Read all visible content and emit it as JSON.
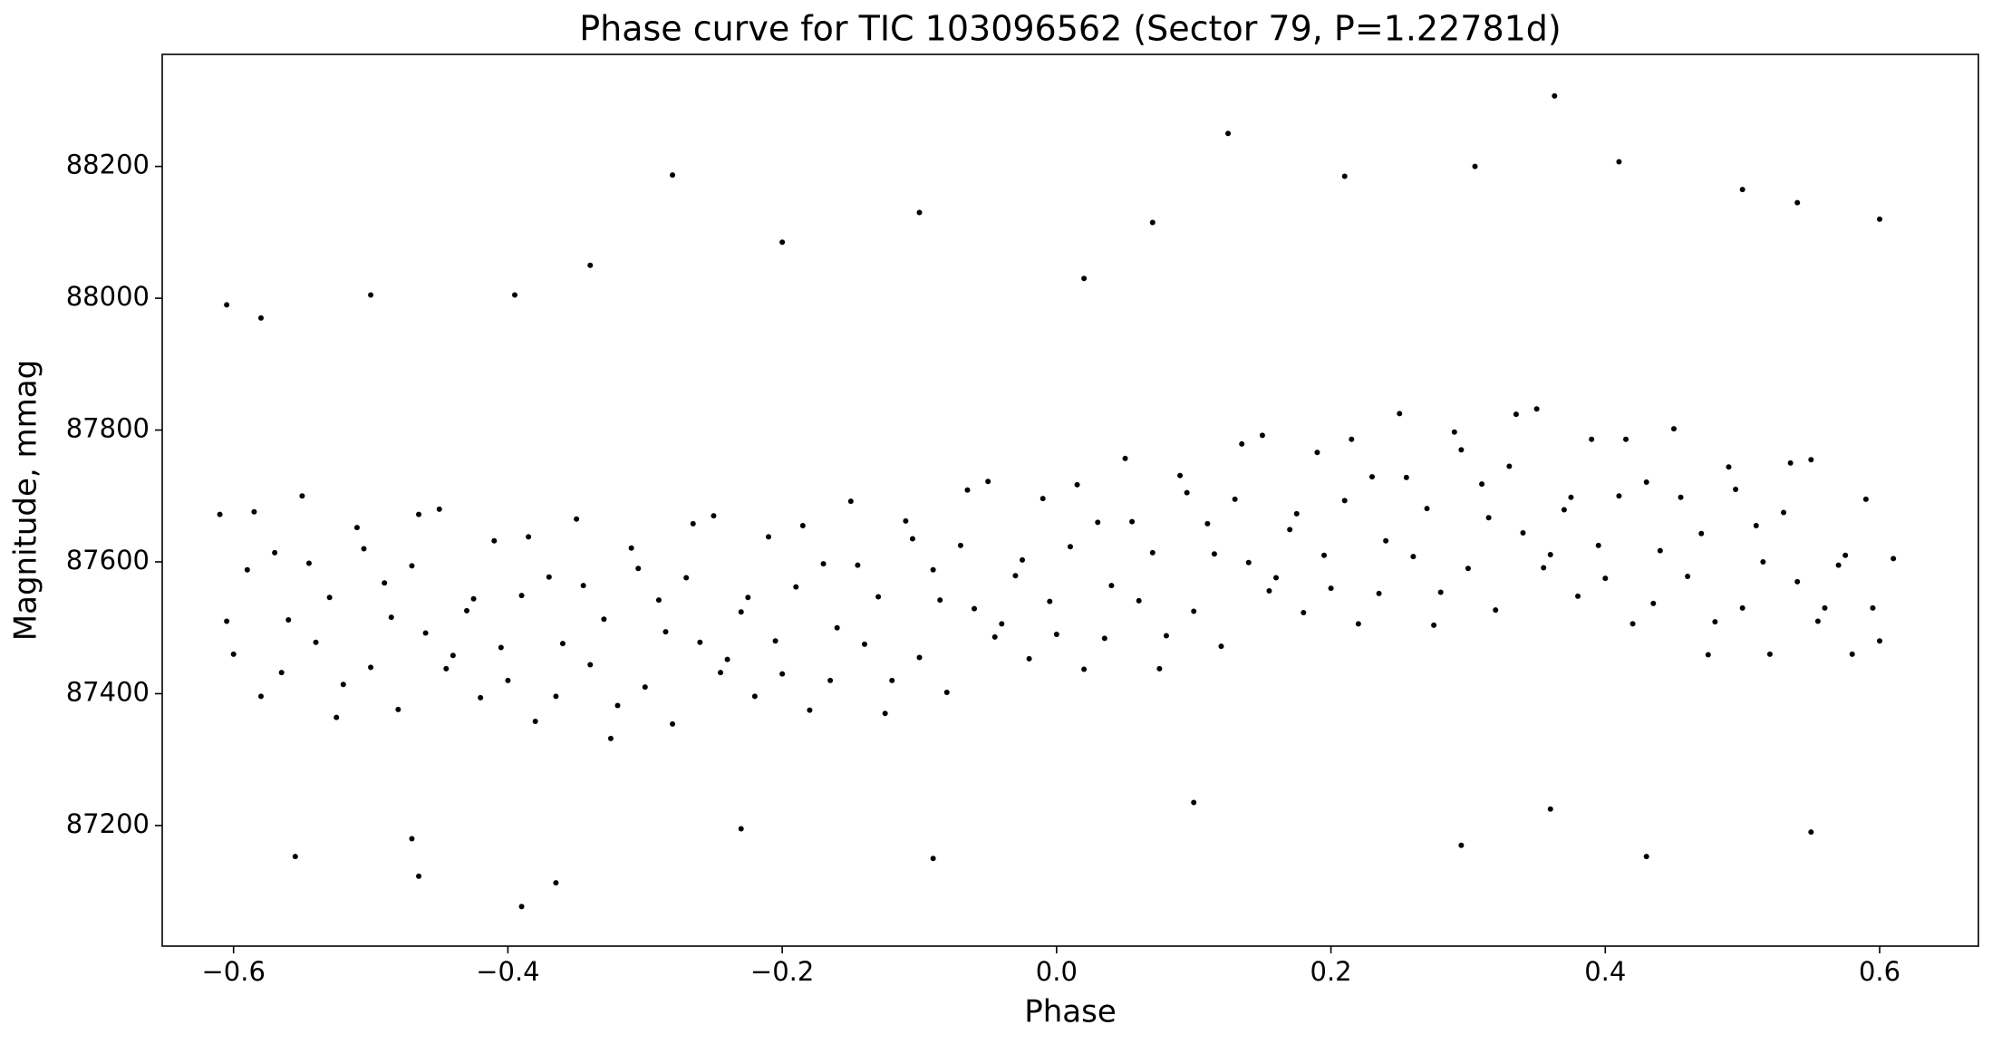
{
  "chart_data": {
    "type": "scatter",
    "title": "Phase curve for TIC 103096562 (Sector 79, P=1.22781d)",
    "x_label": "Phase",
    "y_label": "Magnitude, mmag",
    "xlim": [
      -0.652,
      0.672
    ],
    "ylim": [
      87017,
      88370
    ],
    "xticks": [
      {
        "value": -0.6,
        "label": "−0.6"
      },
      {
        "value": -0.4,
        "label": "−0.4"
      },
      {
        "value": -0.2,
        "label": "−0.2"
      },
      {
        "value": 0,
        "label": "0.0"
      },
      0.2,
      0.4,
      0.6
    ],
    "yticks": [
      87200,
      87400,
      87600,
      87800,
      88000,
      88200
    ],
    "grid": false,
    "series": [
      {
        "color": "#000000",
        "x": [
          -0.61,
          -0.6,
          -0.59,
          -0.58,
          -0.57,
          -0.56,
          -0.55,
          -0.54,
          -0.53,
          -0.52,
          -0.51,
          -0.5,
          -0.49,
          -0.48,
          -0.47,
          -0.46,
          -0.45,
          -0.44,
          -0.43,
          -0.42,
          -0.41,
          -0.4,
          -0.39,
          -0.38,
          -0.37,
          -0.36,
          -0.35,
          -0.34,
          -0.33,
          -0.32,
          -0.31,
          -0.3,
          -0.29,
          -0.28,
          -0.27,
          -0.26,
          -0.25,
          -0.24,
          -0.23,
          -0.22,
          -0.21,
          -0.2,
          -0.19,
          -0.18,
          -0.17,
          -0.16,
          -0.15,
          -0.14,
          -0.13,
          -0.12,
          -0.11,
          -0.1,
          -0.09,
          -0.08,
          -0.07,
          -0.06,
          -0.05,
          -0.04,
          -0.03,
          -0.02,
          -0.01,
          0,
          0.01,
          0.02,
          0.03,
          0.04,
          0.05,
          0.06,
          0.07,
          0.08,
          0.09,
          0.1,
          0.11,
          0.12,
          0.13,
          0.14,
          0.15,
          0.16,
          0.17,
          0.18,
          0.19,
          0.2,
          0.21,
          0.22,
          0.23,
          0.24,
          0.25,
          0.26,
          0.27,
          0.28,
          0.29,
          0.3,
          0.31,
          0.32,
          0.33,
          0.34,
          0.35,
          0.36,
          0.37,
          0.38,
          0.39,
          0.4,
          0.41,
          0.42,
          0.43,
          0.44,
          0.45,
          0.46,
          0.47,
          0.48,
          0.49,
          0.5,
          0.51,
          0.52,
          0.53,
          0.54,
          0.55,
          0.56,
          0.57,
          0.58,
          0.59,
          0.6,
          0.61,
          -0.605,
          -0.585,
          -0.565,
          -0.545,
          -0.525,
          -0.505,
          -0.485,
          -0.465,
          -0.445,
          -0.425,
          -0.405,
          -0.385,
          -0.365,
          -0.345,
          -0.325,
          -0.305,
          -0.285,
          -0.265,
          -0.245,
          -0.225,
          -0.205,
          -0.185,
          -0.165,
          -0.145,
          -0.125,
          -0.105,
          -0.085,
          -0.065,
          -0.045,
          -0.025,
          -0.005,
          0.015,
          0.035,
          0.055,
          0.075,
          0.095,
          0.115,
          0.135,
          0.155,
          0.175,
          0.195,
          0.215,
          0.235,
          0.255,
          0.275,
          0.295,
          0.315,
          0.335,
          0.355,
          0.375,
          0.395,
          0.415,
          0.435,
          0.455,
          0.475,
          0.495,
          0.515,
          0.535,
          0.555,
          0.575,
          0.595,
          0.363,
          0.125,
          0.41,
          -0.28,
          0.305,
          0.5,
          -0.1,
          0.21,
          -0.39,
          -0.365,
          -0.465,
          0.43,
          -0.555,
          -0.09,
          0.295,
          -0.2,
          0.07,
          -0.605,
          -0.58,
          -0.395,
          -0.34,
          0.6,
          0.54,
          0.02,
          -0.47,
          0.1,
          0.36,
          -0.23,
          0.55,
          -0.5
        ],
        "values": [
          87672,
          87460,
          87588,
          87396,
          87614,
          87512,
          87700,
          87478,
          87546,
          87414,
          87652,
          87440,
          87568,
          87376,
          87594,
          87492,
          87680,
          87458,
          87526,
          87394,
          87632,
          87420,
          87549,
          87358,
          87577,
          87476,
          87665,
          87444,
          87513,
          87382,
          87621,
          87410,
          87542,
          87354,
          87576,
          87478,
          87670,
          87452,
          87524,
          87396,
          87638,
          87430,
          87562,
          87375,
          87597,
          87500,
          87692,
          87475,
          87547,
          87420,
          87662,
          87455,
          87588,
          87402,
          87625,
          87529,
          87722,
          87506,
          87579,
          87453,
          87696,
          87490,
          87623,
          87437,
          87660,
          87564,
          87757,
          87541,
          87614,
          87488,
          87731,
          87525,
          87658,
          87472,
          87695,
          87599,
          87792,
          87576,
          87649,
          87523,
          87766,
          87560,
          87693,
          87506,
          87729,
          87632,
          87825,
          87608,
          87681,
          87554,
          87797,
          87590,
          87718,
          87527,
          87745,
          87644,
          87832,
          87611,
          87679,
          87548,
          87786,
          87575,
          87700,
          87506,
          87721,
          87617,
          87802,
          87578,
          87643,
          87509,
          87744,
          87530,
          87655,
          87460,
          87675,
          87570,
          87755,
          87530,
          87595,
          87460,
          87695,
          87480,
          87605,
          87510,
          87676,
          87432,
          87598,
          87364,
          87620,
          87516,
          87672,
          87438,
          87544,
          87470,
          87638,
          87396,
          87564,
          87332,
          87590,
          87494,
          87658,
          87432,
          87546,
          87480,
          87655,
          87420,
          87595,
          87370,
          87635,
          87542,
          87709,
          87486,
          87603,
          87540,
          87717,
          87484,
          87661,
          87438,
          87705,
          87612,
          87779,
          87556,
          87673,
          87610,
          87786,
          87552,
          87728,
          87504,
          87770,
          87667,
          87824,
          87591,
          87698,
          87625,
          87786,
          87537,
          87698,
          87459,
          87710,
          87600,
          87750,
          87510,
          87610,
          87530,
          88307,
          88250,
          88207,
          88187,
          88200,
          88165,
          88130,
          88185,
          87077,
          87113,
          87123,
          87153,
          87153,
          87150,
          87170,
          88085,
          88115,
          87990,
          87970,
          88005,
          88050,
          88120,
          88145,
          88030,
          87180,
          87235,
          87225,
          87195,
          87190,
          88005
        ]
      }
    ]
  }
}
